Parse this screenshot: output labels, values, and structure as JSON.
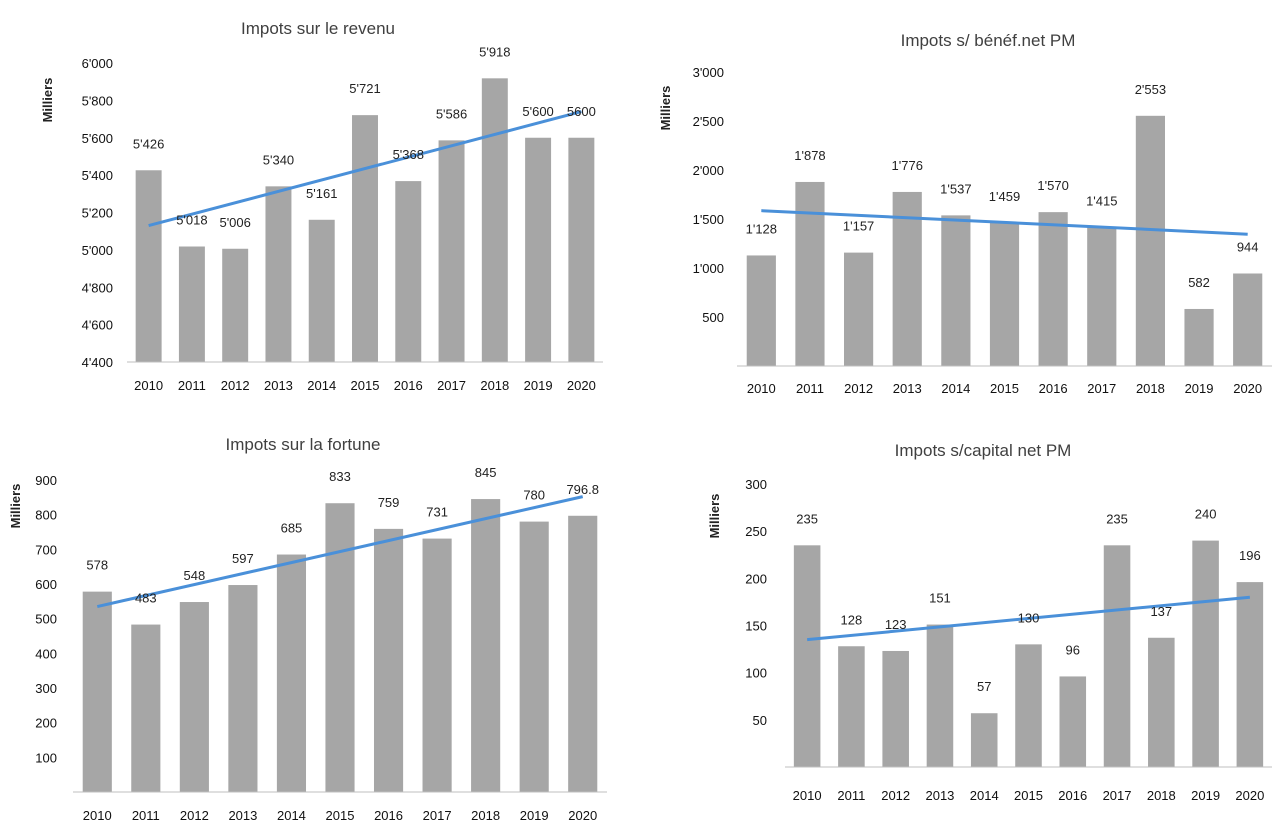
{
  "chart_data": [
    {
      "type": "bar",
      "title": "Impots sur le revenu",
      "ylabel": "Milliers",
      "xlabel": "",
      "categories": [
        "2010",
        "2011",
        "2012",
        "2013",
        "2014",
        "2015",
        "2016",
        "2017",
        "2018",
        "2019",
        "2020"
      ],
      "values": [
        5426,
        5018,
        5006,
        5340,
        5161,
        5721,
        5368,
        5586,
        5918,
        5600,
        5600
      ],
      "data_labels": [
        "5'426",
        "5'018",
        "5'006",
        "5'340",
        "5'161",
        "5'721",
        "5'368",
        "5'586",
        "5'918",
        "5'600",
        "5600"
      ],
      "ylim": [
        4400,
        6000
      ],
      "yticks": [
        4400,
        4600,
        4800,
        5000,
        5200,
        5400,
        5600,
        5800,
        6000
      ],
      "ytick_labels": [
        "4'400",
        "4'600",
        "4'800",
        "5'000",
        "5'200",
        "5'400",
        "5'600",
        "5'800",
        "6'000"
      ],
      "trendline": {
        "start": 5130,
        "end": 5740
      },
      "grid": false,
      "bar_color": "#a6a6a6",
      "trend_color": "#4a90d9"
    },
    {
      "type": "bar",
      "title": "Impots s/ bénéf.net PM",
      "ylabel": "Milliers",
      "xlabel": "",
      "categories": [
        "2010",
        "2011",
        "2012",
        "2013",
        "2014",
        "2015",
        "2016",
        "2017",
        "2018",
        "2019",
        "2020"
      ],
      "values": [
        1128,
        1878,
        1157,
        1776,
        1537,
        1459,
        1570,
        1415,
        2553,
        582,
        944
      ],
      "data_labels": [
        "1'128",
        "1'878",
        "1'157",
        "1'776",
        "1'537",
        "1'459",
        "1'570",
        "1'415",
        "2'553",
        "582",
        "944"
      ],
      "ylim": [
        0,
        3000
      ],
      "yticks": [
        500,
        1000,
        1500,
        2000,
        2500,
        3000
      ],
      "ytick_labels": [
        "500",
        "1'000",
        "1'500",
        "2'000",
        "2'500",
        "3'000"
      ],
      "trendline": {
        "start": 1585,
        "end": 1345
      },
      "grid": false,
      "bar_color": "#a6a6a6",
      "trend_color": "#4a90d9"
    },
    {
      "type": "bar",
      "title": "Impots sur la fortune",
      "ylabel": "Milliers",
      "xlabel": "",
      "categories": [
        "2010",
        "2011",
        "2012",
        "2013",
        "2014",
        "2015",
        "2016",
        "2017",
        "2018",
        "2019",
        "2020"
      ],
      "values": [
        578,
        483,
        548,
        597,
        685,
        833,
        759,
        731,
        845,
        780,
        796.8
      ],
      "data_labels": [
        "578",
        "483",
        "548",
        "597",
        "685",
        "833",
        "759",
        "731",
        "845",
        "780",
        "796.8"
      ],
      "ylim": [
        0,
        900
      ],
      "yticks": [
        100,
        200,
        300,
        400,
        500,
        600,
        700,
        800,
        900
      ],
      "ytick_labels": [
        "100",
        "200",
        "300",
        "400",
        "500",
        "600",
        "700",
        "800",
        "900"
      ],
      "trendline": {
        "start": 535,
        "end": 852
      },
      "grid": false,
      "bar_color": "#a6a6a6",
      "trend_color": "#4a90d9"
    },
    {
      "type": "bar",
      "title": "Impots s/capital net PM",
      "ylabel": "Milliers",
      "xlabel": "",
      "categories": [
        "2010",
        "2011",
        "2012",
        "2013",
        "2014",
        "2015",
        "2016",
        "2017",
        "2018",
        "2019",
        "2020"
      ],
      "values": [
        235,
        128,
        123,
        151,
        57,
        130,
        96,
        235,
        137,
        240,
        196
      ],
      "data_labels": [
        "235",
        "128",
        "123",
        "151",
        "57",
        "130",
        "96",
        "235",
        "137",
        "240",
        "196"
      ],
      "ylim": [
        0,
        300
      ],
      "yticks": [
        50,
        100,
        150,
        200,
        250,
        300
      ],
      "ytick_labels": [
        "50",
        "100",
        "150",
        "200",
        "250",
        "300"
      ],
      "trendline": {
        "start": 135,
        "end": 180
      },
      "grid": false,
      "bar_color": "#a6a6a6",
      "trend_color": "#4a90d9"
    }
  ]
}
